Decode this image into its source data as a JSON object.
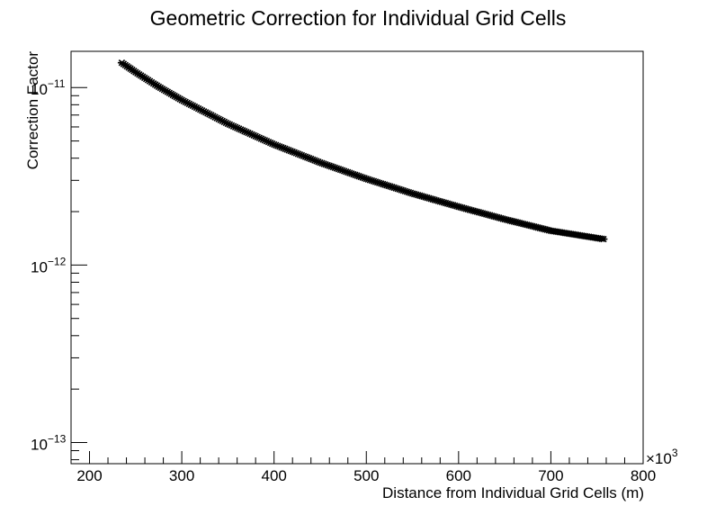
{
  "chart_data": {
    "type": "scatter",
    "title": "Geometric Correction for Individual Grid Cells",
    "xlabel": "Distance from Individual Grid Cells (m)",
    "ylabel": "Correction Factor",
    "x_multiplier_label": "×10",
    "x_multiplier_exponent": "3",
    "xlim": [
      180000,
      800000
    ],
    "ylim": [
      7.6e-14,
      1.6e-11
    ],
    "yscale": "log",
    "grid": false,
    "legend": "none",
    "marker": "asterisk",
    "marker_color": "#000000",
    "x_ticks": [
      {
        "value": 200000,
        "label": "200"
      },
      {
        "value": 300000,
        "label": "300"
      },
      {
        "value": 400000,
        "label": "400"
      },
      {
        "value": 500000,
        "label": "500"
      },
      {
        "value": 600000,
        "label": "600"
      },
      {
        "value": 700000,
        "label": "700"
      },
      {
        "value": 800000,
        "label": "800"
      }
    ],
    "y_ticks": [
      {
        "value": 1e-13,
        "base": "10",
        "exponent": "−13"
      },
      {
        "value": 1e-12,
        "base": "10",
        "exponent": "−12"
      },
      {
        "value": 1e-11,
        "base": "10",
        "exponent": "−11"
      }
    ],
    "series": [
      {
        "x": [
          235000,
          250000,
          275000,
          300000,
          350000,
          400000,
          450000,
          500000,
          550000,
          600000,
          650000,
          700000,
          757000
        ],
        "y": [
          1.38e-11,
          1.22e-11,
          1.01e-11,
          8.5e-12,
          6.25e-12,
          4.78e-12,
          3.78e-12,
          3.06e-12,
          2.53e-12,
          2.13e-12,
          1.81e-12,
          1.56e-12,
          1.4e-12
        ]
      }
    ]
  }
}
